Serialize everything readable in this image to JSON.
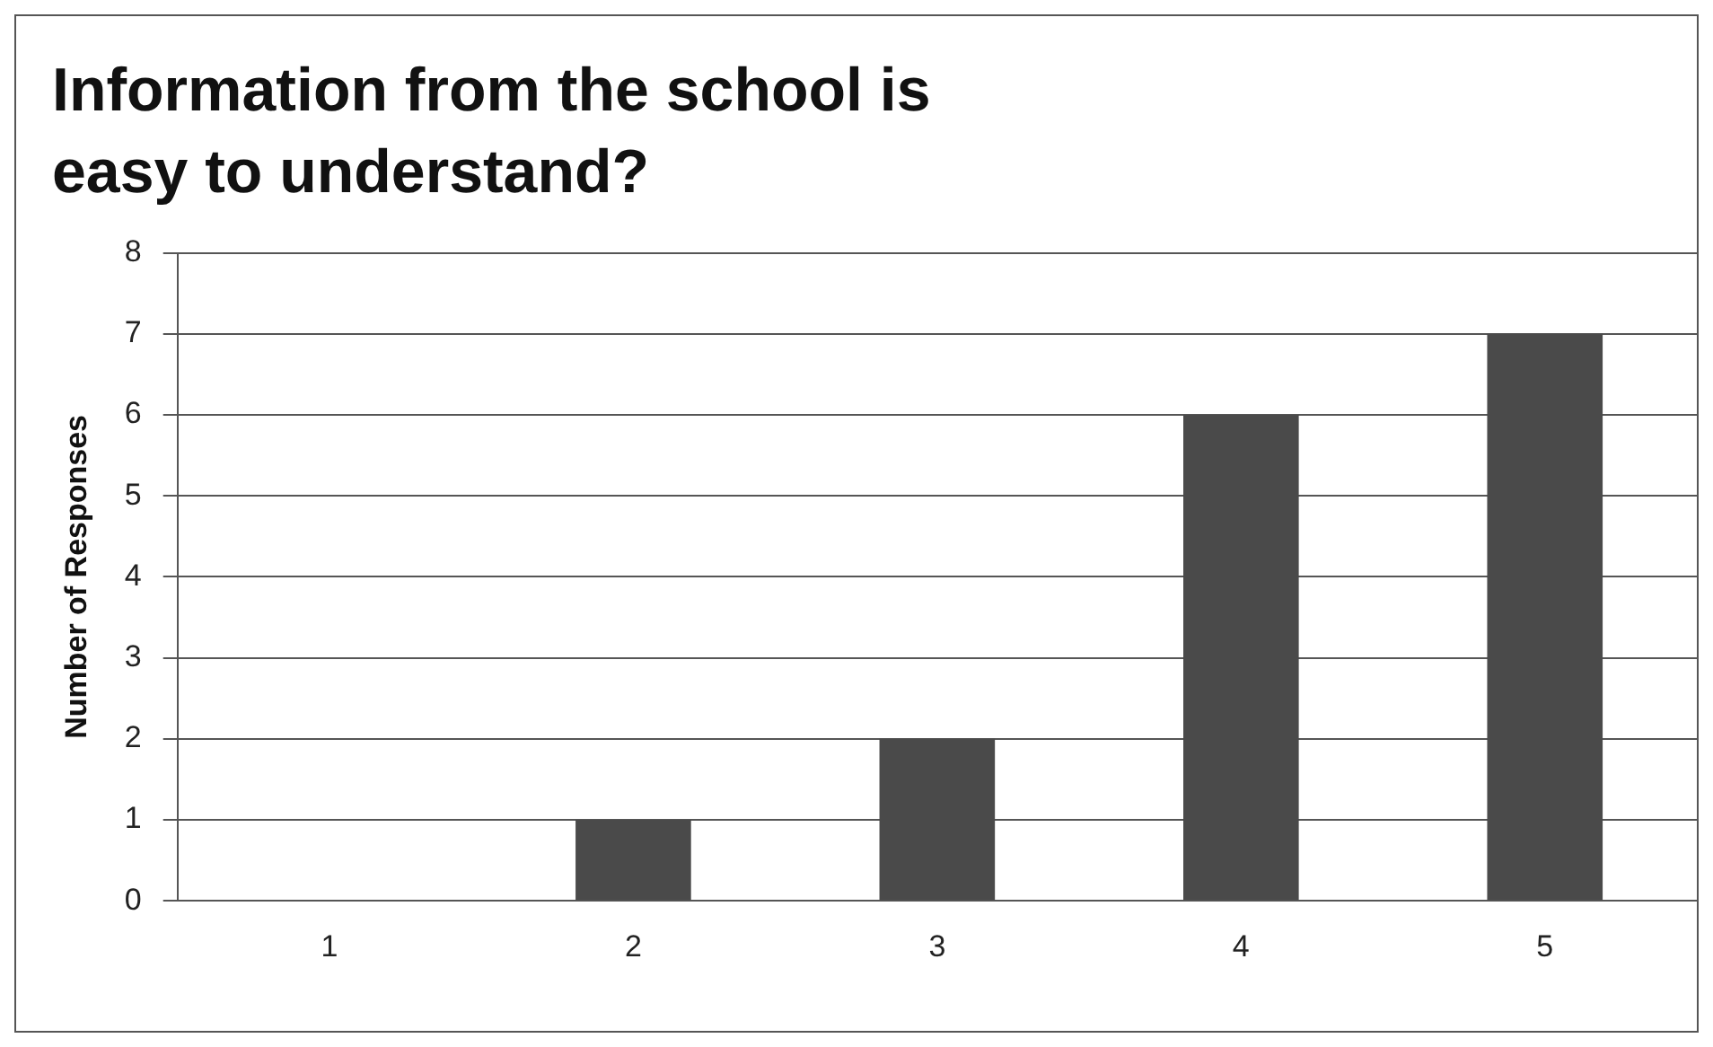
{
  "chart_data": {
    "type": "bar",
    "title": "Information from the school is easy to understand?",
    "ylabel": "Number of Responses",
    "categories": [
      "1",
      "2",
      "3",
      "4",
      "5"
    ],
    "values": [
      0,
      1,
      2,
      6,
      7
    ],
    "color": "#4a4a4a",
    "ylim": [
      0,
      8
    ],
    "yticks": [
      0,
      1,
      2,
      3,
      4,
      5,
      6,
      7,
      8
    ],
    "grid": "y",
    "legend": false
  }
}
